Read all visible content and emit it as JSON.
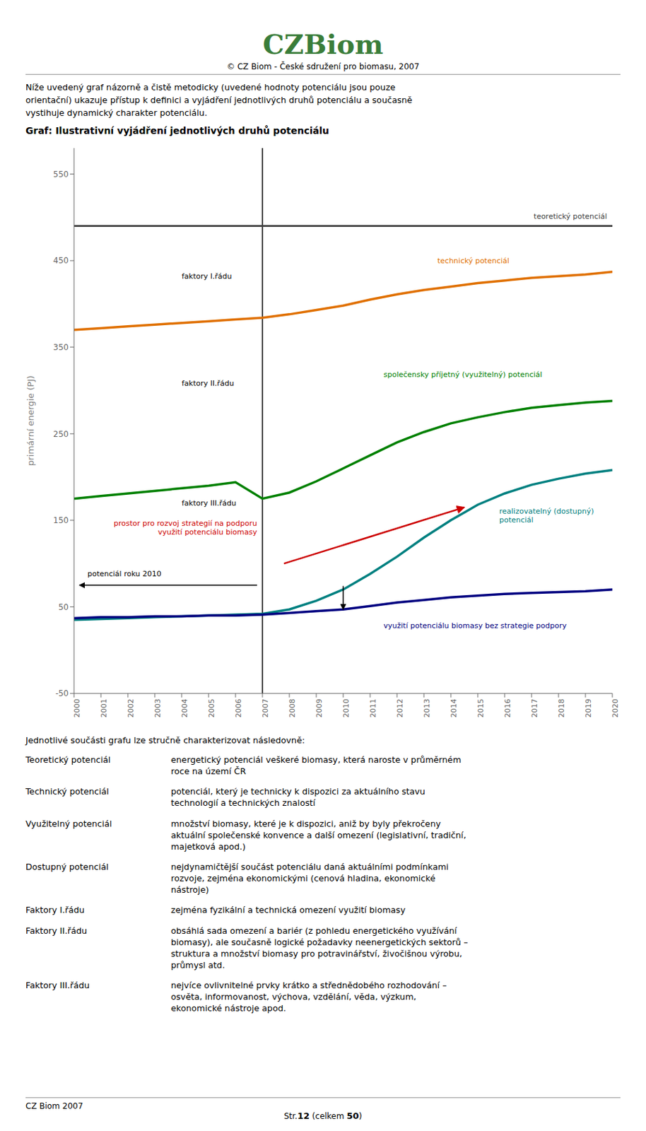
{
  "page": {
    "logo": [
      "CZ",
      "Biom"
    ],
    "logo_color": "#3a7d3a",
    "subtitle": "© CZ Biom - České sdružení pro biomasu, 2007",
    "intro": "Níže uvedený graf názorně a čistě metodicky (uvedené hodnoty potenciálu jsou pouze\norientační) ukazuje přístup k definici a vyjádření jednotlivých druhů potenciálu a současně\nvystihuje dynamický charakter potenciálu.",
    "description_intro": "Jednotlivé součásti grafu lze stručně charakterizovat následovně:",
    "descriptions": [
      [
        "Teoretický potenciál",
        "energetický potenciál veškeré biomasy, která naroste v průměrném\nroce na území ČR"
      ],
      [
        "Technický potenciál",
        "potenciál, který je technicky k dispozici za aktuálního stavu\ntechnologií a technických znalostí"
      ],
      [
        "Využitelný potenciál",
        "množství biomasy, které je k dispozici, aniž by byly překročeny\naktuální společenské konvence a další omezení (legislativní, tradiční,\nmajetková apod.)"
      ],
      [
        "Dostupný potenciál",
        "nejdynamičtější součást potenciálu daná aktuálními podmínkami\nrozvoje, zejména ekonomickými (cenová hladina, ekonomické\nnástroje)"
      ],
      [
        "Faktory I.řádu",
        "zejména fyzikální a technická omezení využití biomasy"
      ],
      [
        "Faktory II.řádu",
        "obsáhlá sada omezení a bariér (z pohledu energetického využívání\nbiomasy), ale současně logické požadavky neenergetických sektorů –\nstruktura a množství biomasy pro potravinářství, živočišnou výrobu,\nprůmysl atd."
      ],
      [
        "Faktory III.řádu",
        "nejvíce ovlivnitelné prvky krátko a střednědobého rozhodování –\nosvěta, informovanost, výchova, vzdělání, věda, výzkum,\nekonomické nástroje apod."
      ]
    ],
    "footer": "CZ Biom 2007",
    "page_number": [
      "Str.",
      "12",
      " (celkem ",
      "50",
      ")"
    ]
  },
  "chart_data": {
    "type": "line",
    "title": "Graf: Ilustrativní vyjádření jednotlivých druhů potenciálu",
    "x": [
      2000,
      2001,
      2002,
      2003,
      2004,
      2005,
      2006,
      2007,
      2008,
      2009,
      2010,
      2011,
      2012,
      2013,
      2014,
      2015,
      2016,
      2017,
      2018,
      2019,
      2020
    ],
    "xlim": [
      2000,
      2020
    ],
    "xticks": [
      2000,
      2001,
      2002,
      2003,
      2004,
      2005,
      2006,
      2007,
      2008,
      2009,
      2010,
      2011,
      2012,
      2013,
      2014,
      2015,
      2016,
      2017,
      2018,
      2019,
      2020
    ],
    "ylim": [
      -50,
      580
    ],
    "yticks": [
      -50,
      50,
      150,
      250,
      350,
      450,
      550
    ],
    "ylabel": "primární energie (PJ)",
    "grid": false,
    "series": [
      {
        "name": "teoretický potenciál",
        "color": "#404040",
        "values": [
          490,
          490,
          490,
          490,
          490,
          490,
          490,
          490,
          490,
          490,
          490,
          490,
          490,
          490,
          490,
          490,
          490,
          490,
          490,
          490,
          490
        ]
      },
      {
        "name": "technický potenciál",
        "color": "#e07000",
        "values": [
          370,
          372,
          374,
          376,
          378,
          380,
          382,
          384,
          388,
          393,
          398,
          405,
          411,
          416,
          420,
          424,
          427,
          430,
          432,
          434,
          437
        ]
      },
      {
        "name": "společensky příjetný (využitelný) potenciál",
        "color": "#008000",
        "values": [
          175,
          178,
          181,
          184,
          187,
          190,
          194,
          175,
          182,
          195,
          210,
          225,
          240,
          252,
          262,
          269,
          275,
          280,
          283,
          286,
          288
        ]
      },
      {
        "name": "realizovatelný (dostupný)\npotenciál",
        "color": "#008080",
        "values": [
          35,
          36,
          37,
          38,
          39,
          40,
          41,
          42,
          47,
          57,
          70,
          88,
          108,
          130,
          150,
          168,
          181,
          191,
          198,
          204,
          208
        ]
      },
      {
        "name": "využití potenciálu biomasy bez strategie podpory",
        "color": "#000080",
        "values": [
          37,
          38,
          38,
          39,
          39,
          40,
          40,
          41,
          43,
          45,
          47,
          51,
          55,
          58,
          61,
          63,
          65,
          66,
          67,
          68,
          70
        ]
      }
    ],
    "reference_x": 2007,
    "annotations": [
      {
        "text": "faktory I.řádu"
      },
      {
        "text": "faktory II.řádu"
      },
      {
        "text": "faktory III.řádu"
      },
      {
        "text": "potenciál roku 2010"
      },
      {
        "text": "prostor pro rozvoj strategií na podporu\nvyužití potenciálu biomasy",
        "color": "#cc0000"
      }
    ]
  }
}
